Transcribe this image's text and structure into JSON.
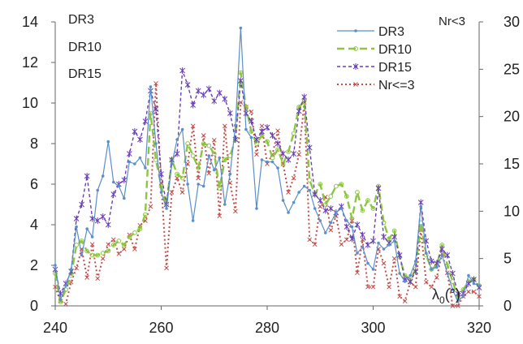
{
  "chart_data": {
    "type": "line",
    "x_axis": {
      "ticks": [
        240,
        260,
        280,
        300,
        320
      ],
      "range": [
        240,
        320
      ],
      "label_main": "λ",
      "label_sub": "0",
      "label_unit": "(°)"
    },
    "y_left": {
      "ticks": [
        0,
        2,
        4,
        6,
        8,
        10,
        12,
        14
      ],
      "range": [
        0,
        14
      ]
    },
    "y_right": {
      "ticks": [
        0,
        5,
        10,
        15,
        20,
        25,
        30
      ],
      "range": [
        0,
        30
      ],
      "label": "Nr<3"
    },
    "grid": "none",
    "left_labels": [
      "DR3",
      "DR10",
      "DR15"
    ],
    "legend_position": "top-right",
    "series": [
      {
        "name": "DR3",
        "axis": "left",
        "color": "#5b8fc9",
        "dash": "",
        "marker": "dot",
        "width": 1.2,
        "x": [
          240,
          241,
          242,
          243,
          244,
          245,
          246,
          247,
          248,
          249,
          250,
          251,
          252,
          253,
          254,
          255,
          256,
          257,
          258,
          259,
          260,
          261,
          262,
          263,
          264,
          265,
          266,
          267,
          268,
          269,
          270,
          271,
          272,
          273,
          274,
          275,
          276,
          277,
          278,
          279,
          280,
          281,
          282,
          283,
          284,
          285,
          286,
          287,
          288,
          289,
          290,
          291,
          292,
          293,
          294,
          295,
          296,
          297,
          298,
          299,
          300,
          301,
          302,
          303,
          304,
          305,
          306,
          307,
          308,
          309,
          310,
          311,
          312,
          313,
          314,
          315,
          316,
          317,
          318,
          319,
          320
        ],
        "y": [
          2.0,
          0.3,
          1.0,
          1.8,
          3.9,
          2.5,
          3.8,
          3.4,
          5.7,
          6.4,
          8.1,
          6.1,
          5.9,
          5.3,
          7.1,
          7.0,
          7.3,
          6.8,
          10.8,
          8.0,
          5.6,
          4.8,
          7.0,
          8.2,
          8.7,
          6.0,
          4.2,
          6.0,
          5.9,
          7.4,
          6.7,
          7.3,
          5.0,
          6.5,
          8.9,
          13.7,
          8.7,
          8.3,
          4.8,
          7.2,
          7.1,
          7.1,
          6.8,
          5.2,
          4.6,
          5.1,
          5.6,
          5.9,
          5.7,
          4.8,
          4.2,
          3.6,
          4.1,
          4.6,
          4.8,
          4.2,
          3.9,
          2.6,
          2.9,
          2.1,
          1.8,
          3.1,
          2.8,
          3.0,
          3.2,
          1.6,
          1.2,
          1.5,
          2.2,
          4.9,
          2.6,
          1.8,
          1.9,
          2.5,
          1.6,
          0.8,
          0.2,
          0.5,
          1.5,
          1.1,
          1.0
        ]
      },
      {
        "name": "DR10",
        "axis": "left",
        "color": "#8cc63e",
        "dash": "9 5",
        "marker": "circle",
        "width": 2.4,
        "x": [
          240,
          241,
          242,
          243,
          244,
          245,
          246,
          247,
          248,
          249,
          250,
          251,
          252,
          253,
          254,
          255,
          256,
          257,
          258,
          259,
          260,
          261,
          262,
          263,
          264,
          265,
          266,
          267,
          268,
          269,
          270,
          271,
          272,
          273,
          274,
          275,
          276,
          277,
          278,
          279,
          280,
          281,
          282,
          283,
          284,
          285,
          286,
          287,
          288,
          289,
          290,
          291,
          292,
          293,
          294,
          295,
          296,
          297,
          298,
          299,
          300,
          301,
          302,
          303,
          304,
          305,
          306,
          307,
          308,
          309,
          310,
          311,
          312,
          313,
          314,
          315,
          316,
          317,
          318,
          319,
          320
        ],
        "y": [
          1.6,
          0.2,
          0.8,
          1.5,
          3.0,
          3.2,
          2.7,
          2.5,
          2.5,
          2.6,
          2.7,
          3.0,
          3.2,
          3.0,
          3.4,
          3.6,
          3.8,
          4.5,
          9.5,
          7.2,
          5.9,
          5.0,
          7.2,
          6.5,
          6.3,
          8.0,
          7.4,
          6.8,
          8.0,
          7.9,
          7.5,
          5.8,
          7.2,
          7.4,
          8.2,
          11.5,
          9.8,
          8.6,
          8.0,
          8.4,
          8.1,
          7.3,
          7.7,
          7.0,
          7.6,
          8.5,
          9.8,
          10.1,
          6.2,
          5.5,
          6.0,
          5.0,
          5.4,
          5.9,
          6.0,
          5.4,
          4.3,
          5.6,
          4.7,
          5.2,
          4.8,
          5.9,
          4.1,
          3.3,
          3.7,
          2.4,
          1.5,
          1.3,
          1.8,
          4.1,
          2.5,
          1.8,
          2.0,
          3.0,
          2.0,
          1.2,
          0.4,
          0.8,
          1.2,
          1.3,
          1.0
        ]
      },
      {
        "name": "DR15",
        "axis": "left",
        "color": "#6a3fb5",
        "dash": "4 3",
        "marker": "cross",
        "width": 1.4,
        "x": [
          240,
          241,
          242,
          243,
          244,
          245,
          246,
          247,
          248,
          249,
          250,
          251,
          252,
          253,
          254,
          255,
          256,
          257,
          258,
          259,
          260,
          261,
          262,
          263,
          264,
          265,
          266,
          267,
          268,
          269,
          270,
          271,
          272,
          273,
          274,
          275,
          276,
          277,
          278,
          279,
          280,
          281,
          282,
          283,
          284,
          285,
          286,
          287,
          288,
          289,
          290,
          291,
          292,
          293,
          294,
          295,
          296,
          297,
          298,
          299,
          300,
          301,
          302,
          303,
          304,
          305,
          306,
          307,
          308,
          309,
          310,
          311,
          312,
          313,
          314,
          315,
          316,
          317,
          318,
          319,
          320
        ],
        "y": [
          1.8,
          0.6,
          1.1,
          1.7,
          4.3,
          5.0,
          6.4,
          4.3,
          4.2,
          4.4,
          4.0,
          5.5,
          6.0,
          6.2,
          7.5,
          8.6,
          8.2,
          9.1,
          10.6,
          9.7,
          6.5,
          5.0,
          7.2,
          7.5,
          11.6,
          10.9,
          9.9,
          10.6,
          10.4,
          10.7,
          10.1,
          10.5,
          10.2,
          9.5,
          8.2,
          11.1,
          9.5,
          9.1,
          8.2,
          8.6,
          8.8,
          8.4,
          8.0,
          7.5,
          7.2,
          7.5,
          9.6,
          10.3,
          7.8,
          5.5,
          5.2,
          4.7,
          4.8,
          4.6,
          4.9,
          3.9,
          3.3,
          4.0,
          3.5,
          3.0,
          3.2,
          5.8,
          3.4,
          3.1,
          3.4,
          2.5,
          1.3,
          1.2,
          1.7,
          5.1,
          3.2,
          2.2,
          2.1,
          2.8,
          2.5,
          1.6,
          0.6,
          0.6,
          1.1,
          1.3,
          0.9
        ]
      },
      {
        "name": "Nr<=3",
        "axis": "right",
        "color": "#c0504d",
        "dash": "2 3",
        "marker": "x",
        "width": 2.0,
        "x": [
          240,
          241,
          242,
          243,
          244,
          245,
          246,
          247,
          248,
          249,
          250,
          251,
          252,
          253,
          254,
          255,
          256,
          257,
          258,
          259,
          260,
          261,
          262,
          263,
          264,
          265,
          266,
          267,
          268,
          269,
          270,
          271,
          272,
          273,
          274,
          275,
          276,
          277,
          278,
          279,
          280,
          281,
          282,
          283,
          284,
          285,
          286,
          287,
          288,
          289,
          290,
          291,
          292,
          293,
          294,
          295,
          296,
          297,
          298,
          299,
          300,
          301,
          302,
          303,
          304,
          305,
          306,
          307,
          308,
          309,
          310,
          311,
          312,
          313,
          314,
          315,
          316,
          317,
          318,
          319,
          320
        ],
        "y": [
          2.0,
          0.5,
          0.2,
          2.5,
          4.0,
          6.0,
          3.0,
          6.5,
          2.9,
          5.0,
          6.5,
          7.0,
          5.5,
          6.0,
          7.5,
          6.0,
          8.5,
          9.0,
          10.5,
          23.5,
          13.0,
          4.0,
          12.0,
          13.5,
          12.0,
          15.0,
          19.0,
          13.5,
          18.0,
          14.0,
          17.5,
          9.5,
          19.0,
          13.0,
          10.0,
          21.5,
          21.0,
          20.5,
          16.0,
          19.0,
          15.0,
          16.0,
          18.5,
          15.0,
          12.0,
          13.5,
          16.0,
          21.5,
          7.0,
          6.5,
          10.5,
          11.5,
          8.0,
          9.5,
          6.5,
          7.0,
          9.0,
          3.5,
          7.0,
          2.0,
          2.0,
          6.0,
          4.5,
          2.0,
          5.0,
          1.0,
          0.5,
          2.5,
          2.0,
          8.0,
          2.5,
          2.0,
          3.0,
          5.5,
          3.5,
          0.0,
          0.0,
          1.0,
          1.5,
          1.5,
          1.0
        ]
      }
    ]
  }
}
